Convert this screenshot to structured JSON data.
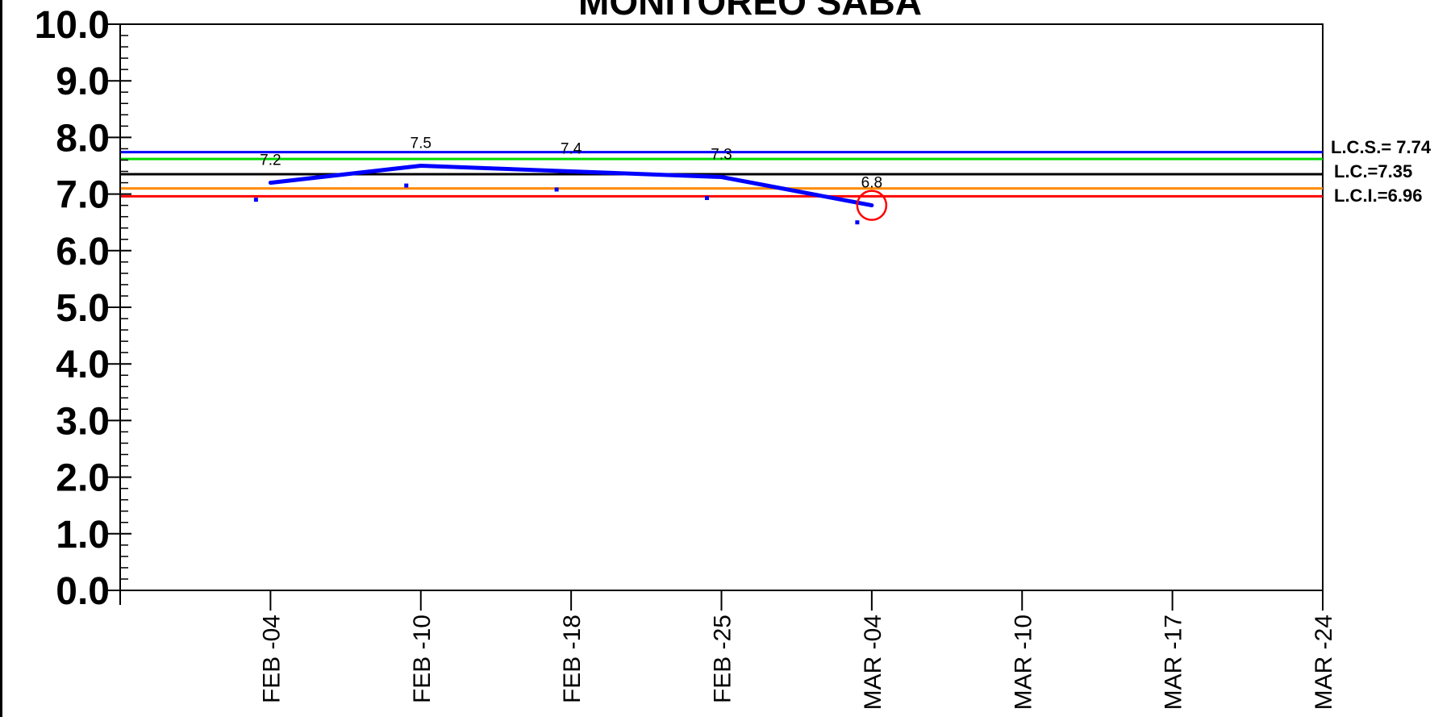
{
  "chart_data": {
    "type": "line",
    "title": "MONITOREO SABA",
    "xlabel": "",
    "ylabel": "",
    "ylim": [
      0,
      10
    ],
    "y_ticks": [
      "0.0",
      "1.0",
      "2.0",
      "3.0",
      "4.0",
      "5.0",
      "6.0",
      "7.0",
      "8.0",
      "9.0",
      "10.0"
    ],
    "x_ticks": [
      "FEB -04",
      "FEB -10",
      "FEB -18",
      "FEB -25",
      "MAR -04",
      "MAR -10",
      "MAR -17",
      "MAR -24"
    ],
    "series": [
      {
        "color": "#0000ff",
        "points": [
          {
            "x": "FEB -04",
            "y": 7.2,
            "label": "7.2"
          },
          {
            "x": "FEB -10",
            "y": 7.5,
            "label": "7.5"
          },
          {
            "x": "FEB -18",
            "y": 7.4,
            "label": "7.4"
          },
          {
            "x": "FEB -25",
            "y": 7.3,
            "label": "7.3"
          },
          {
            "x": "MAR -04",
            "y": 6.8,
            "label": "6.8"
          }
        ]
      }
    ],
    "small_markers": [
      {
        "x": "FEB -04",
        "y": 6.9
      },
      {
        "x": "FEB -10",
        "y": 7.15
      },
      {
        "x": "FEB -18",
        "y": 7.08
      },
      {
        "x": "FEB -25",
        "y": 6.93
      },
      {
        "x": "MAR -04",
        "y": 6.5
      }
    ],
    "reference_lines": [
      {
        "value": 7.74,
        "color": "#0000ff",
        "label": "L.C.S.= 7.74"
      },
      {
        "value": 7.62,
        "color": "#00dd00",
        "label": ""
      },
      {
        "value": 7.35,
        "color": "#000000",
        "label": "L.C.=7.35"
      },
      {
        "value": 7.1,
        "color": "#ff8c00",
        "label": ""
      },
      {
        "value": 6.96,
        "color": "#ff0000",
        "label": "L.C.I.=6.96"
      }
    ],
    "highlighted_point": {
      "x": "MAR -04",
      "y": 6.8,
      "color": "#ff0000"
    },
    "grid": false,
    "legend": "right"
  }
}
